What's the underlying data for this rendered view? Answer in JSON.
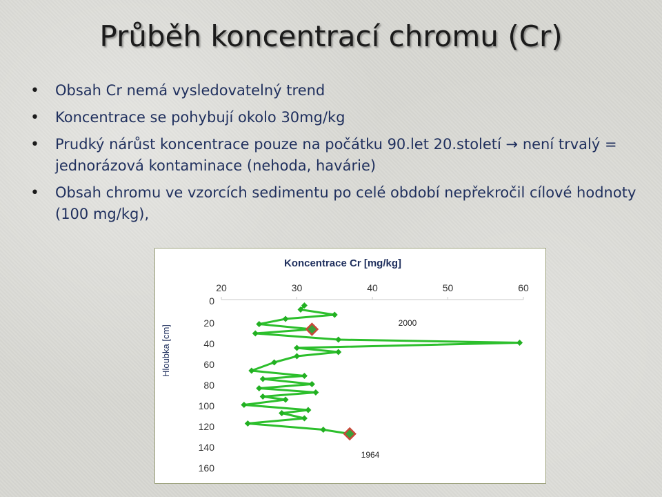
{
  "slide": {
    "title": "Průběh koncentrací chromu (Cr)",
    "bullets": [
      "Obsah Cr nemá vysledovatelný trend",
      "Koncentrace se pohybují okolo 30mg/kg",
      "Prudký nárůst koncentrace pouze na počátku 90.let 20.století → není trvalý = jednorázová kontaminace (nehoda, havárie)",
      "Obsah chromu ve vzorcích sedimentu po celé období nepřekročil cílové hodnoty (100 mg/kg),"
    ]
  },
  "colors": {
    "line": "#2cbf2c",
    "marker": "#22b022",
    "highlight_fill": "#c8483a",
    "highlight_inner": "#3aa13a",
    "text": "#1f2f5d"
  },
  "chart_data": {
    "type": "line",
    "title": "Koncentrace  Cr [mg/kg]",
    "xlabel": "",
    "ylabel": "Hloubka [cm]",
    "xlim": [
      20,
      60
    ],
    "ylim": [
      160,
      0
    ],
    "x_ticks": [
      "20",
      "30",
      "40",
      "50",
      "60"
    ],
    "y_ticks": [
      "0",
      "20",
      "40",
      "60",
      "80",
      "100",
      "120",
      "140",
      "160"
    ],
    "grid": false,
    "series": [
      {
        "points": [
          {
            "x": 31,
            "y": 3
          },
          {
            "x": 30.5,
            "y": 7
          },
          {
            "x": 35,
            "y": 12
          },
          {
            "x": 28.5,
            "y": 16
          },
          {
            "x": 25,
            "y": 21
          },
          {
            "x": 32,
            "y": 26
          },
          {
            "x": 24.5,
            "y": 30
          },
          {
            "x": 35.5,
            "y": 36
          },
          {
            "x": 59.5,
            "y": 39
          },
          {
            "x": 30,
            "y": 44
          },
          {
            "x": 35.5,
            "y": 48
          },
          {
            "x": 30,
            "y": 52
          },
          {
            "x": 27,
            "y": 58
          },
          {
            "x": 24,
            "y": 66
          },
          {
            "x": 31,
            "y": 71
          },
          {
            "x": 25.5,
            "y": 74
          },
          {
            "x": 32,
            "y": 79
          },
          {
            "x": 25,
            "y": 83
          },
          {
            "x": 32.5,
            "y": 87
          },
          {
            "x": 25.5,
            "y": 91
          },
          {
            "x": 28.5,
            "y": 94
          },
          {
            "x": 23,
            "y": 99
          },
          {
            "x": 31.5,
            "y": 104
          },
          {
            "x": 28,
            "y": 107
          },
          {
            "x": 31,
            "y": 112
          },
          {
            "x": 23.5,
            "y": 117
          },
          {
            "x": 33.5,
            "y": 123
          },
          {
            "x": 37,
            "y": 127
          }
        ]
      }
    ],
    "highlighted": [
      {
        "x": 32,
        "y": 26
      },
      {
        "x": 37,
        "y": 127
      }
    ],
    "annotations": [
      {
        "text": "2000"
      },
      {
        "text": "1964"
      }
    ]
  }
}
